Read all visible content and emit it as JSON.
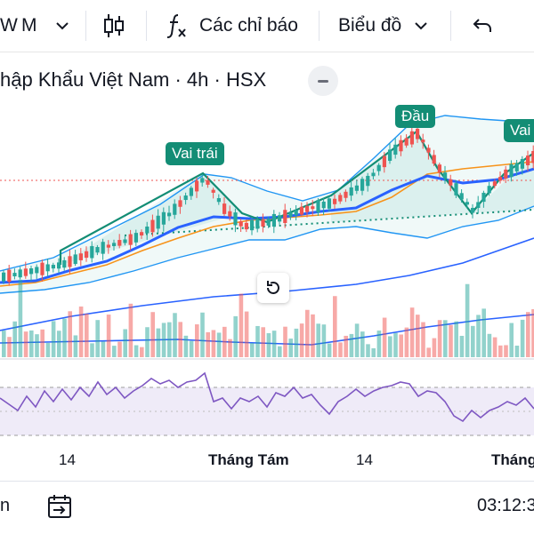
{
  "toolbar": {
    "interval_partial": "W",
    "interval_selected": "M",
    "indicators_label": "Các chỉ báo",
    "chart_type_label": "Biểu đồ"
  },
  "header": {
    "symbol_title": "hập Khẩu Việt Nam · 4h · HSX"
  },
  "pattern_labels": {
    "left_shoulder": "Vai trái",
    "head": "Đầu",
    "right_shoulder_partial": "Vai"
  },
  "time_axis": {
    "labels": [
      "14",
      "Tháng Tám",
      "14",
      "Tháng"
    ]
  },
  "bottom_bar": {
    "left_text": "n",
    "time": "03:12:3"
  },
  "colors": {
    "up": "#26a69a",
    "down": "#ef5350",
    "pattern": "#138d75",
    "ma_blue": "#2962ff",
    "ma_orange": "#f7931a",
    "bollinger": "#2196f3",
    "rsi": "#7e57c2"
  },
  "icons": [
    "chevron-down-icon",
    "candlestick-icon",
    "function-icon",
    "undo-icon",
    "minus-icon",
    "reset-icon",
    "calendar-goto-icon"
  ]
}
